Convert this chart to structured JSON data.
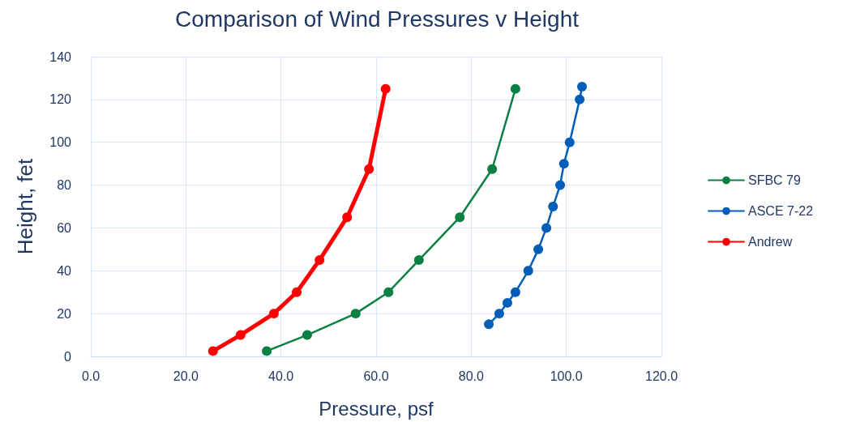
{
  "chart_data": {
    "type": "line",
    "title": "Comparison of Wind Pressures v Height",
    "xlabel": "Pressure, psf",
    "ylabel": "Height, fet",
    "xlim": [
      0,
      120
    ],
    "xticks": [
      {
        "value": 0,
        "label": "0.0"
      },
      {
        "value": 20,
        "label": "20.0"
      },
      {
        "value": 40,
        "label": "40.0"
      },
      {
        "value": 60,
        "label": "60.0"
      },
      {
        "value": 80,
        "label": "80.0"
      },
      {
        "value": 100,
        "label": "100.0"
      },
      {
        "value": 120,
        "label": "120.0"
      }
    ],
    "ylim": [
      0,
      140
    ],
    "yticks": [
      0,
      20,
      40,
      60,
      80,
      100,
      120,
      140
    ],
    "grid": true,
    "legend": "right",
    "marker": "circle",
    "line_style": "solid",
    "series": [
      {
        "name": "SFBC 79",
        "color": "#0b8043",
        "x": [
          37.0,
          45.5,
          55.7,
          62.6,
          69.0,
          77.6,
          84.4,
          89.3
        ],
        "values": [
          2.5,
          10,
          20,
          30,
          45,
          65,
          87.5,
          125
        ]
      },
      {
        "name": "ASCE 7-22",
        "color": "#005eb8",
        "x": [
          83.7,
          85.9,
          87.6,
          89.3,
          92.0,
          94.1,
          95.8,
          97.2,
          98.7,
          99.5,
          100.7,
          102.8,
          103.3
        ],
        "values": [
          15,
          20,
          25,
          30,
          40,
          50,
          60,
          70,
          80,
          90,
          100,
          120,
          126
        ]
      },
      {
        "name": "Andrew",
        "color": "#ff0000",
        "x": [
          25.7,
          31.5,
          38.5,
          43.3,
          48.1,
          53.9,
          58.5,
          62.0
        ],
        "values": [
          2.5,
          10,
          20,
          30,
          45,
          65,
          87.5,
          125
        ]
      }
    ]
  }
}
